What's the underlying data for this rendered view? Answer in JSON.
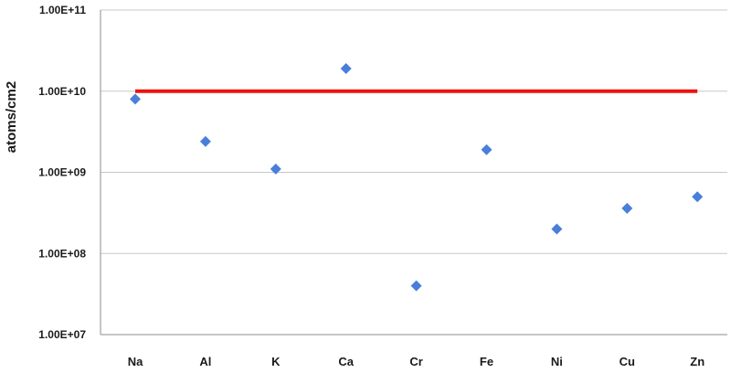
{
  "chart_data": {
    "type": "scatter",
    "ylabel": "atoms/cm2",
    "xlabel": "",
    "title": "",
    "y_scale": "log",
    "ylim": [
      10000000,
      100000000000
    ],
    "y_ticks": [
      {
        "value": 10000000,
        "label": "1.00E+07"
      },
      {
        "value": 100000000,
        "label": "1.00E+08"
      },
      {
        "value": 1000000000,
        "label": "1.00E+09"
      },
      {
        "value": 10000000000,
        "label": "1.00E+10"
      },
      {
        "value": 100000000000,
        "label": "1.00E+11"
      }
    ],
    "grid": true,
    "categories": [
      "Na",
      "Al",
      "K",
      "Ca",
      "Cr",
      "Fe",
      "Ni",
      "Cu",
      "Zn"
    ],
    "series": [
      {
        "marker": "diamond",
        "color": "#4a7fd9",
        "values": [
          8000000000,
          2400000000,
          1100000000,
          19000000000,
          40000000,
          1900000000,
          200000000,
          360000000,
          500000000
        ]
      }
    ],
    "reference_line": {
      "value": 10000000000,
      "color": "#ee1111"
    },
    "colors": {
      "grid": "#c8c8c8",
      "axis": "#8c8c8c"
    }
  }
}
